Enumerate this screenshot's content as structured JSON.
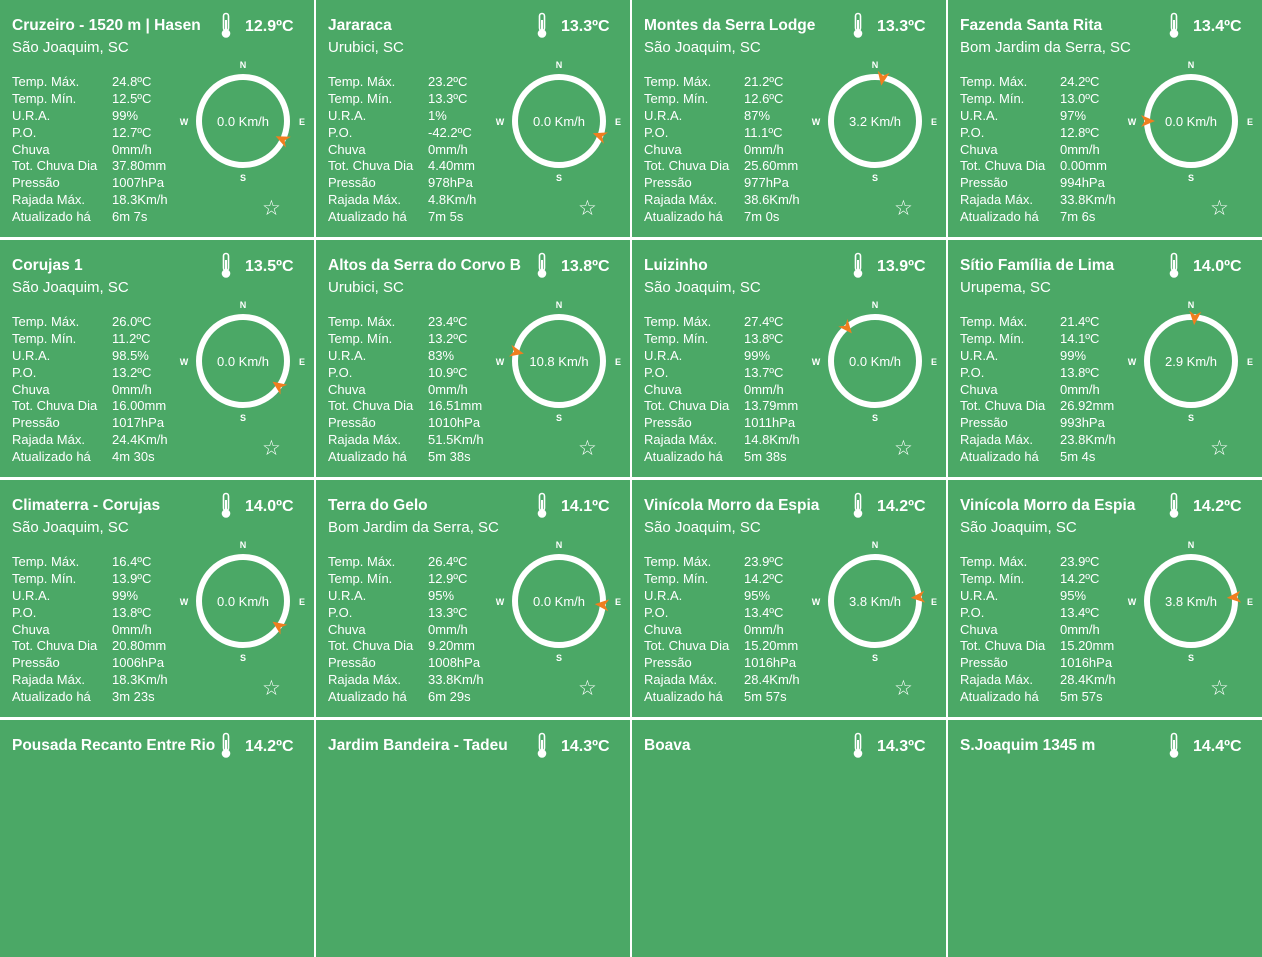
{
  "labels": {
    "temp_max": "Temp. Máx.",
    "temp_min": "Temp. Mín.",
    "ura": "U.R.A.",
    "po": "P.O.",
    "chuva": "Chuva",
    "tot_chuva": "Tot. Chuva Dia",
    "pressao": "Pressão",
    "rajada": "Rajada Máx.",
    "atualizado": "Atualizado há"
  },
  "compass_letters": {
    "n": "N",
    "s": "S",
    "e": "E",
    "w": "W"
  },
  "colors": {
    "card_bg": "#4ba866",
    "text": "#ffffff",
    "wind_arrow": "#f07e1f"
  },
  "icons": {
    "temperature": "thermometer-icon",
    "favorite": "star-outline-icon",
    "wind_direction": "wind-arrow-icon"
  },
  "stations": [
    {
      "name": "Cruzeiro - 1520 m | Hasen",
      "location": "São Joaquim, SC",
      "temp": "12.9ºC",
      "wind": "0.0 Km/h",
      "wind_dir_deg": 115,
      "stats": {
        "temp_max": "24.8ºC",
        "temp_min": "12.5ºC",
        "ura": "99%",
        "po": "12.7ºC",
        "chuva": "0mm/h",
        "tot_chuva": "37.80mm",
        "pressao": "1007hPa",
        "rajada": "18.3Km/h",
        "atualizado": "6m 7s"
      }
    },
    {
      "name": "Jararaca",
      "location": "Urubici, SC",
      "temp": "13.3ºC",
      "wind": "0.0 Km/h",
      "wind_dir_deg": 110,
      "stats": {
        "temp_max": "23.2ºC",
        "temp_min": "13.3ºC",
        "ura": "1%",
        "po": "-42.2ºC",
        "chuva": "0mm/h",
        "tot_chuva": "4.40mm",
        "pressao": "978hPa",
        "rajada": "4.8Km/h",
        "atualizado": "7m 5s"
      }
    },
    {
      "name": "Montes da Serra Lodge",
      "location": "São Joaquim, SC",
      "temp": "13.3ºC",
      "wind": "3.2 Km/h",
      "wind_dir_deg": 10,
      "stats": {
        "temp_max": "21.2ºC",
        "temp_min": "12.6ºC",
        "ura": "87%",
        "po": "11.1ºC",
        "chuva": "0mm/h",
        "tot_chuva": "25.60mm",
        "pressao": "977hPa",
        "rajada": "38.6Km/h",
        "atualizado": "7m 0s"
      }
    },
    {
      "name": "Fazenda Santa Rita",
      "location": "Bom Jardim da Serra, SC",
      "temp": "13.4ºC",
      "wind": "0.0 Km/h",
      "wind_dir_deg": 270,
      "stats": {
        "temp_max": "24.2ºC",
        "temp_min": "13.0ºC",
        "ura": "97%",
        "po": "12.8ºC",
        "chuva": "0mm/h",
        "tot_chuva": "0.00mm",
        "pressao": "994hPa",
        "rajada": "33.8Km/h",
        "atualizado": "7m 6s"
      }
    },
    {
      "name": "Corujas 1",
      "location": "São Joaquim, SC",
      "temp": "13.5ºC",
      "wind": "0.0 Km/h",
      "wind_dir_deg": 125,
      "stats": {
        "temp_max": "26.0ºC",
        "temp_min": "11.2ºC",
        "ura": "98.5%",
        "po": "13.2ºC",
        "chuva": "0mm/h",
        "tot_chuva": "16.00mm",
        "pressao": "1017hPa",
        "rajada": "24.4Km/h",
        "atualizado": "4m 30s"
      }
    },
    {
      "name": "Altos da Serra do Corvo B",
      "location": "Urubici, SC",
      "temp": "13.8ºC",
      "wind": "10.8 Km/h",
      "wind_dir_deg": 282,
      "stats": {
        "temp_max": "23.4ºC",
        "temp_min": "13.2ºC",
        "ura": "83%",
        "po": "10.9ºC",
        "chuva": "0mm/h",
        "tot_chuva": "16.51mm",
        "pressao": "1010hPa",
        "rajada": "51.5Km/h",
        "atualizado": "5m 38s"
      }
    },
    {
      "name": "Luizinho",
      "location": "São Joaquim, SC",
      "temp": "13.9ºC",
      "wind": "0.0 Km/h",
      "wind_dir_deg": 320,
      "stats": {
        "temp_max": "27.4ºC",
        "temp_min": "13.8ºC",
        "ura": "99%",
        "po": "13.7ºC",
        "chuva": "0mm/h",
        "tot_chuva": "13.79mm",
        "pressao": "1011hPa",
        "rajada": "14.8Km/h",
        "atualizado": "5m 38s"
      }
    },
    {
      "name": "Sítio Família de Lima",
      "location": "Urupema, SC",
      "temp": "14.0ºC",
      "wind": "2.9 Km/h",
      "wind_dir_deg": 5,
      "stats": {
        "temp_max": "21.4ºC",
        "temp_min": "14.1ºC",
        "ura": "99%",
        "po": "13.8ºC",
        "chuva": "0mm/h",
        "tot_chuva": "26.92mm",
        "pressao": "993hPa",
        "rajada": "23.8Km/h",
        "atualizado": "5m 4s"
      }
    },
    {
      "name": "Climaterra - Corujas",
      "location": "São Joaquim, SC",
      "temp": "14.0ºC",
      "wind": "0.0 Km/h",
      "wind_dir_deg": 125,
      "stats": {
        "temp_max": "16.4ºC",
        "temp_min": "13.9ºC",
        "ura": "99%",
        "po": "13.8ºC",
        "chuva": "0mm/h",
        "tot_chuva": "20.80mm",
        "pressao": "1006hPa",
        "rajada": "18.3Km/h",
        "atualizado": "3m 23s"
      }
    },
    {
      "name": "Terra do Gelo",
      "location": "Bom Jardim da Serra, SC",
      "temp": "14.1ºC",
      "wind": "0.0 Km/h",
      "wind_dir_deg": 95,
      "stats": {
        "temp_max": "26.4ºC",
        "temp_min": "12.9ºC",
        "ura": "95%",
        "po": "13.3ºC",
        "chuva": "0mm/h",
        "tot_chuva": "9.20mm",
        "pressao": "1008hPa",
        "rajada": "33.8Km/h",
        "atualizado": "6m 29s"
      }
    },
    {
      "name": "Vinícola Morro da Espia",
      "location": "São Joaquim, SC",
      "temp": "14.2ºC",
      "wind": "3.8 Km/h",
      "wind_dir_deg": 85,
      "stats": {
        "temp_max": "23.9ºC",
        "temp_min": "14.2ºC",
        "ura": "95%",
        "po": "13.4ºC",
        "chuva": "0mm/h",
        "tot_chuva": "15.20mm",
        "pressao": "1016hPa",
        "rajada": "28.4Km/h",
        "atualizado": "5m 57s"
      }
    },
    {
      "name": "Vinícola Morro da Espia",
      "location": "São Joaquim, SC",
      "temp": "14.2ºC",
      "wind": "3.8 Km/h",
      "wind_dir_deg": 85,
      "stats": {
        "temp_max": "23.9ºC",
        "temp_min": "14.2ºC",
        "ura": "95%",
        "po": "13.4ºC",
        "chuva": "0mm/h",
        "tot_chuva": "15.20mm",
        "pressao": "1016hPa",
        "rajada": "28.4Km/h",
        "atualizado": "5m 57s"
      }
    },
    {
      "name": "Pousada Recanto Entre Rio",
      "temp": "14.2ºC"
    },
    {
      "name": "Jardim Bandeira - Tadeu",
      "temp": "14.3ºC"
    },
    {
      "name": "Boava",
      "temp": "14.3ºC"
    },
    {
      "name": "S.Joaquim 1345 m",
      "temp": "14.4ºC"
    }
  ]
}
